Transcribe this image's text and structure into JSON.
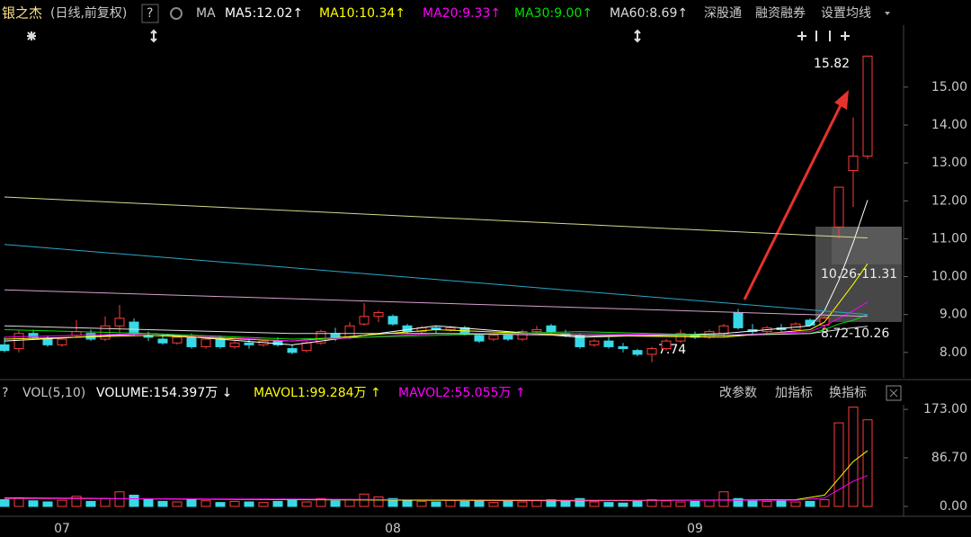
{
  "header": {
    "stock": "银之杰",
    "mode": "(日线,前复权)",
    "help": "?",
    "ma_label": "MA",
    "links": [
      "深股通",
      "融资融券",
      "设置均线"
    ],
    "vol_help": "?",
    "vol_label": "VOL(5,10)",
    "vol_tools": [
      "改参数",
      "加指标",
      "换指标"
    ]
  },
  "chart_data": [
    {
      "type": "candlestick",
      "categories": [
        null,
        null,
        null,
        null,
        "07",
        null,
        null,
        null,
        null,
        null,
        null,
        null,
        null,
        null,
        null,
        null,
        null,
        null,
        null,
        null,
        null,
        null,
        null,
        null,
        null,
        null,
        null,
        "08",
        null,
        null,
        null,
        null,
        null,
        null,
        null,
        null,
        null,
        null,
        null,
        null,
        null,
        null,
        null,
        null,
        null,
        null,
        null,
        null,
        "09",
        null,
        null,
        null,
        null,
        null,
        null,
        null,
        null,
        null,
        null,
        null,
        null
      ],
      "open": [
        8.2,
        8.1,
        8.5,
        8.35,
        8.2,
        8.45,
        8.5,
        8.35,
        8.7,
        8.8,
        8.45,
        8.35,
        8.25,
        8.4,
        8.15,
        8.35,
        8.15,
        8.25,
        8.2,
        8.3,
        8.1,
        8.05,
        8.25,
        8.5,
        8.4,
        8.75,
        8.95,
        8.95,
        8.7,
        8.55,
        8.65,
        8.6,
        8.65,
        8.45,
        8.35,
        8.45,
        8.35,
        8.55,
        8.7,
        8.5,
        8.45,
        8.2,
        8.3,
        8.15,
        8.05,
        7.95,
        8.1,
        8.3,
        8.45,
        8.4,
        8.5,
        9.05,
        8.6,
        8.55,
        8.65,
        8.6,
        8.85,
        8.72,
        11.31,
        12.8,
        13.18
      ],
      "high": [
        8.4,
        8.6,
        8.6,
        8.45,
        8.4,
        8.85,
        8.6,
        8.95,
        9.25,
        8.9,
        8.55,
        8.5,
        8.45,
        8.5,
        8.4,
        8.45,
        8.3,
        8.35,
        8.35,
        8.4,
        8.2,
        8.3,
        8.6,
        8.65,
        8.8,
        9.3,
        9.1,
        9.0,
        8.75,
        8.7,
        8.7,
        8.7,
        8.7,
        8.5,
        8.5,
        8.5,
        8.6,
        8.7,
        8.75,
        8.6,
        8.5,
        8.35,
        8.4,
        8.25,
        8.1,
        8.15,
        8.35,
        8.6,
        8.55,
        8.6,
        8.75,
        9.15,
        8.75,
        8.7,
        8.75,
        8.8,
        8.9,
        8.95,
        12.36,
        14.2,
        15.82
      ],
      "low": [
        8.0,
        8.0,
        8.35,
        8.15,
        8.15,
        8.4,
        8.3,
        8.3,
        8.5,
        8.45,
        8.3,
        8.2,
        8.2,
        8.1,
        8.1,
        8.1,
        8.1,
        8.1,
        8.15,
        8.15,
        7.95,
        8.0,
        8.2,
        8.3,
        8.35,
        8.7,
        8.8,
        8.7,
        8.5,
        8.5,
        8.5,
        8.55,
        8.45,
        8.25,
        8.3,
        8.3,
        8.3,
        8.5,
        8.5,
        8.4,
        8.1,
        8.15,
        8.1,
        8.0,
        7.9,
        7.74,
        8.05,
        8.25,
        8.35,
        8.35,
        8.4,
        8.6,
        8.45,
        8.5,
        8.55,
        8.55,
        8.7,
        8.6,
        11.0,
        11.84,
        13.1
      ],
      "close": [
        8.05,
        8.5,
        8.4,
        8.2,
        8.35,
        8.55,
        8.35,
        8.7,
        8.9,
        8.5,
        8.4,
        8.25,
        8.4,
        8.15,
        8.35,
        8.15,
        8.25,
        8.2,
        8.3,
        8.2,
        8.0,
        8.25,
        8.55,
        8.4,
        8.7,
        8.95,
        9.05,
        8.75,
        8.55,
        8.65,
        8.6,
        8.65,
        8.5,
        8.3,
        8.45,
        8.35,
        8.55,
        8.6,
        8.55,
        8.45,
        8.15,
        8.3,
        8.15,
        8.1,
        7.95,
        8.1,
        8.3,
        8.5,
        8.4,
        8.55,
        8.7,
        8.65,
        8.55,
        8.65,
        8.6,
        8.75,
        8.72,
        8.9,
        12.36,
        13.18,
        15.82
      ],
      "up_color": "#ff3c3c",
      "down_color": "#38d9e6",
      "lines": [
        {
          "name": "MA5:12.02↑",
          "color": "#ffffff",
          "x": [
            0,
            10,
            20,
            30,
            40,
            50,
            56,
            57,
            58,
            59,
            60
          ],
          "values": [
            8.3,
            8.5,
            8.2,
            8.7,
            8.4,
            8.5,
            8.7,
            9.1,
            9.9,
            10.9,
            12.02
          ]
        },
        {
          "name": "MA10:10.34↑",
          "color": "#ffff00",
          "x": [
            0,
            10,
            20,
            30,
            40,
            50,
            56,
            57,
            58,
            59,
            60
          ],
          "values": [
            8.35,
            8.45,
            8.3,
            8.6,
            8.45,
            8.4,
            8.6,
            8.8,
            9.3,
            9.8,
            10.34
          ]
        },
        {
          "name": "MA20:9.33↑",
          "color": "#ff00ff",
          "x": [
            0,
            10,
            20,
            30,
            40,
            50,
            56,
            57,
            58,
            59,
            60
          ],
          "values": [
            8.4,
            8.5,
            8.3,
            8.5,
            8.5,
            8.45,
            8.55,
            8.7,
            8.9,
            9.1,
            9.33
          ]
        },
        {
          "name": "MA30:9.00↑",
          "color": "#00e000",
          "x": [
            0,
            10,
            20,
            30,
            40,
            50,
            56,
            57,
            58,
            59,
            60
          ],
          "values": [
            8.6,
            8.5,
            8.35,
            8.45,
            8.55,
            8.45,
            8.5,
            8.6,
            8.75,
            8.85,
            9.0
          ]
        },
        {
          "name": "MA60:8.69↑",
          "color": "#dddddd",
          "x": [
            0,
            10,
            20,
            30,
            40,
            50,
            56,
            57,
            58,
            59,
            60
          ],
          "values": [
            8.7,
            8.6,
            8.5,
            8.5,
            8.45,
            8.45,
            8.5,
            8.55,
            8.6,
            8.65,
            8.69
          ]
        },
        {
          "color": "#d8d890",
          "x": [
            0,
            60
          ],
          "values": [
            12.1,
            11.02
          ]
        },
        {
          "color": "#2aa8c8",
          "x": [
            0,
            60
          ],
          "values": [
            10.85,
            9.0
          ]
        },
        {
          "color": "#d8a0d0",
          "x": [
            0,
            60
          ],
          "values": [
            9.65,
            8.95
          ]
        }
      ],
      "annotations": [
        "15.82",
        "7.74",
        "10.26-11.31",
        "8.72-10.26"
      ],
      "ylim": [
        7.33,
        17.3
      ],
      "yticks": [
        {
          "value": 15,
          "label": "15.00"
        },
        {
          "value": 14,
          "label": "14.00"
        },
        {
          "value": 13,
          "label": "13.00"
        },
        {
          "value": 12,
          "label": "12.00"
        },
        {
          "value": 11,
          "label": "11.00"
        },
        {
          "value": 10,
          "label": "10.00"
        },
        {
          "value": 9,
          "label": "9.00"
        },
        {
          "value": 8,
          "label": "8.00"
        }
      ]
    },
    {
      "type": "bar",
      "values": [
        12,
        15,
        10,
        8,
        11,
        18,
        9,
        14,
        26,
        20,
        12,
        9,
        8,
        12,
        10,
        7,
        9,
        8,
        7,
        9,
        11,
        8,
        14,
        10,
        12,
        22,
        17,
        14,
        10,
        9,
        8,
        11,
        9,
        10,
        7,
        9,
        8,
        11,
        12,
        9,
        14,
        8,
        7,
        6,
        9,
        12,
        10,
        8,
        9,
        11,
        26,
        14,
        10,
        9,
        11,
        8,
        9,
        12,
        149,
        177,
        154.397
      ],
      "lines": [
        {
          "name": "VOLUME:154.397万 ↓",
          "color": "#ffffff"
        },
        {
          "name": "MAVOL1:99.284万 ↑",
          "color": "#ffff00",
          "x": [
            0,
            20,
            40,
            55,
            57,
            58,
            59,
            60
          ],
          "values": [
            15,
            12,
            10,
            12,
            20,
            50,
            80,
            99.284
          ]
        },
        {
          "name": "MAVOL2:55.055万 ↑",
          "color": "#ff00ff",
          "x": [
            0,
            20,
            40,
            55,
            57,
            58,
            59,
            60
          ],
          "values": [
            14,
            13,
            11,
            11,
            15,
            30,
            45,
            55.055
          ]
        }
      ],
      "ylim": [
        0,
        178
      ],
      "yticks": [
        {
          "value": 173,
          "label": "173.00"
        },
        {
          "value": 86.7,
          "label": "86.70"
        },
        {
          "value": 0,
          "label": "0.00"
        }
      ]
    }
  ]
}
